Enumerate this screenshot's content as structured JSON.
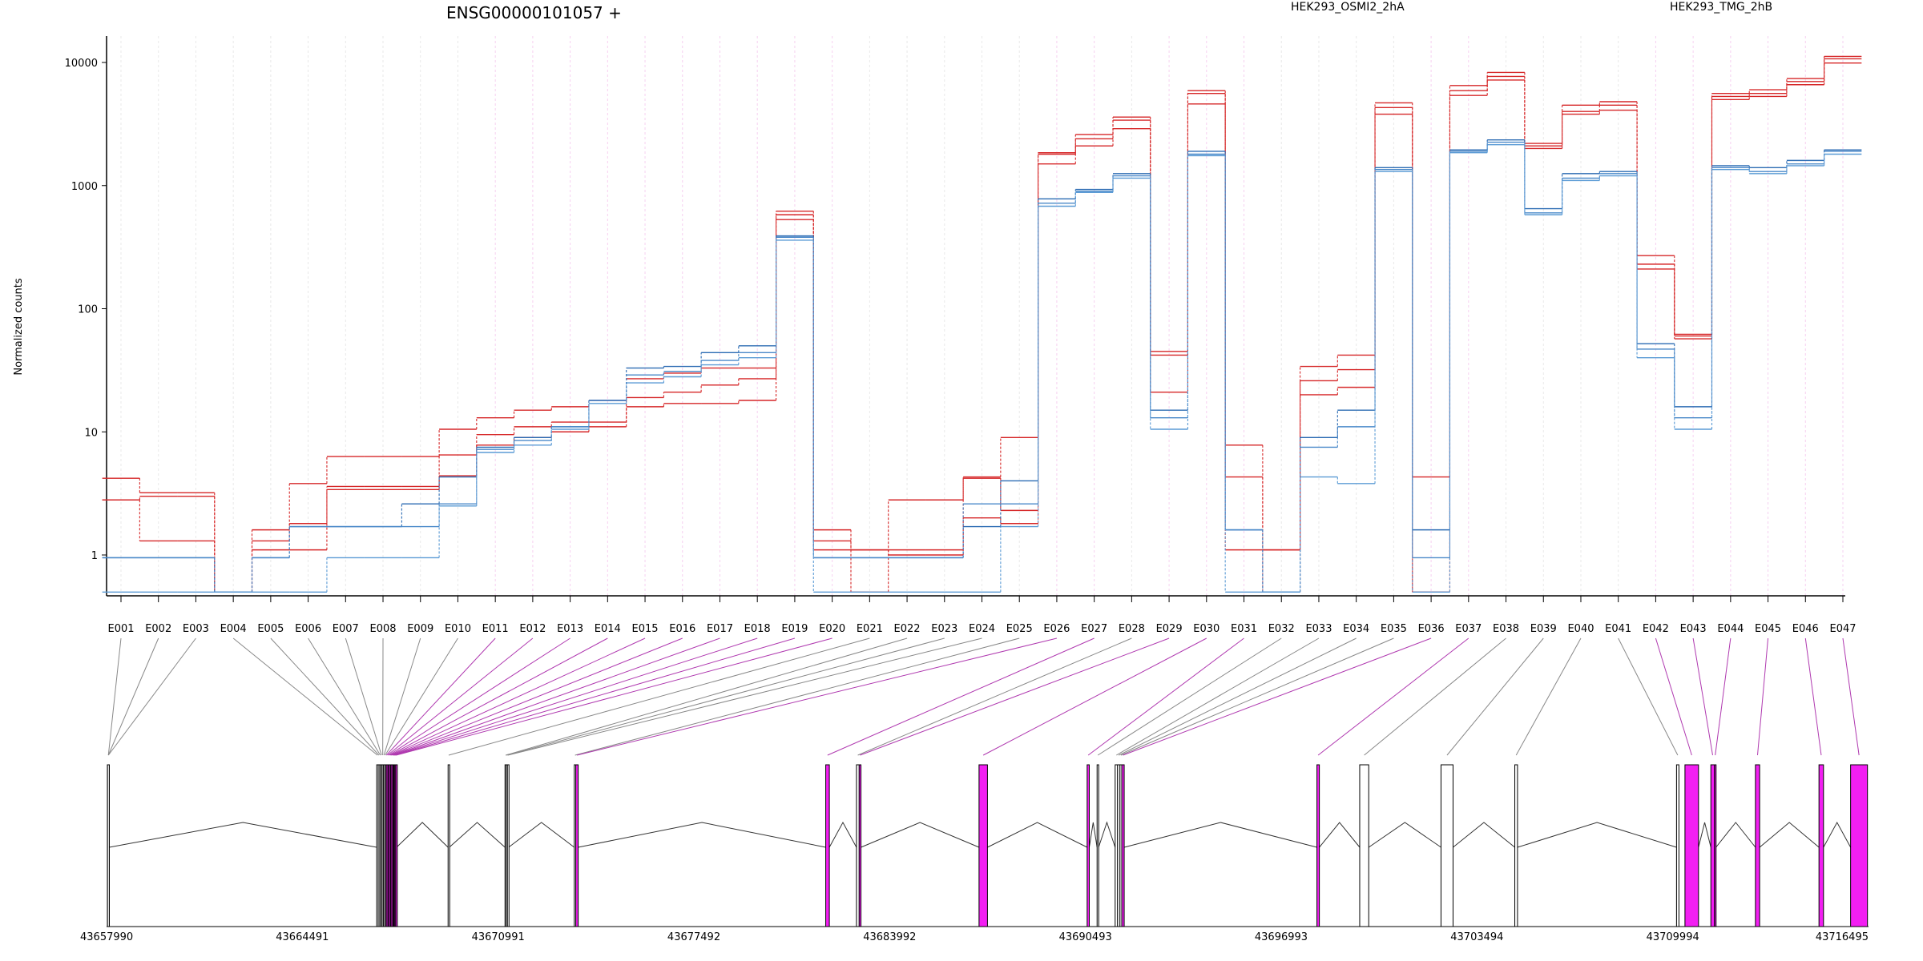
{
  "chart_data": {
    "type": "line",
    "title": "ENSG00000101057 +",
    "xlabel": "",
    "ylabel": "Normalized counts",
    "y_scale": "log",
    "ylim": [
      0.45,
      14000
    ],
    "y_ticks": [
      1,
      10,
      100,
      1000,
      10000
    ],
    "y_tick_labels": [
      "1",
      "10",
      "100",
      "1000",
      "10000"
    ],
    "grid": "vertical dotted lines at each exon, magenta for differential exons",
    "legend_placement": "top",
    "categories": [
      "E001",
      "E002",
      "E003",
      "E004",
      "E005",
      "E006",
      "E007",
      "E008",
      "E009",
      "E010",
      "E011",
      "E012",
      "E013",
      "E014",
      "E015",
      "E016",
      "E017",
      "E018",
      "E019",
      "E020",
      "E021",
      "E022",
      "E023",
      "E024",
      "E025",
      "E026",
      "E027",
      "E028",
      "E029",
      "E030",
      "E031",
      "E032",
      "E033",
      "E034",
      "E035",
      "E036",
      "E037",
      "E038",
      "E039",
      "E040",
      "E041",
      "E042",
      "E043",
      "E044",
      "E045",
      "E046",
      "E047"
    ],
    "series": [
      {
        "name": "HEK293_OSMI2_2hA",
        "color": "#d62728",
        "values": [
          4.2,
          3.2,
          3.2,
          0.5,
          1.6,
          3.8,
          6.3,
          6.3,
          6.3,
          10.5,
          13,
          15,
          16,
          18,
          27,
          30,
          33,
          33,
          620,
          1.6,
          0.5,
          2.8,
          2.8,
          4.3,
          9,
          1850,
          2600,
          3600,
          45,
          5900,
          7.8,
          1.1,
          34,
          42,
          4700,
          4.3,
          6500,
          8300,
          2200,
          4500,
          4800,
          270,
          62,
          5600,
          6000,
          7400,
          11200
        ]
      },
      {
        "name": "HEK293_OSMI2_2hA",
        "color": "#d62728",
        "values": [
          2.8,
          1.3,
          1.3,
          0.5,
          1.3,
          1.8,
          3.6,
          3.6,
          3.6,
          6.5,
          9.5,
          11,
          12,
          12,
          19,
          21,
          24,
          27,
          580,
          1.3,
          1.1,
          1.1,
          1.1,
          4.2,
          2.3,
          1800,
          2400,
          3400,
          42,
          5600,
          4.3,
          0.5,
          26,
          32,
          4300,
          0.5,
          5900,
          7700,
          2100,
          4000,
          4500,
          230,
          60,
          5300,
          5600,
          7000,
          10700
        ]
      },
      {
        "name": "HEK293_OSMI2_2hA",
        "color": "#d62728",
        "values": [
          2.8,
          3.0,
          3.0,
          0.5,
          1.1,
          1.1,
          3.4,
          3.4,
          3.4,
          4.4,
          7.8,
          9,
          10,
          11,
          16,
          17,
          17,
          18,
          530,
          1.1,
          1.1,
          1.0,
          1.0,
          2.0,
          1.8,
          1500,
          2100,
          2900,
          21,
          4600,
          1.1,
          1.1,
          20,
          23,
          3800,
          0.5,
          5400,
          7200,
          2000,
          3800,
          4100,
          210,
          57,
          5000,
          5300,
          6600,
          9900
        ]
      },
      {
        "name": "HEK293_TMG_2hB",
        "color": "#2b6bb3",
        "values": [
          0.95,
          0.95,
          0.95,
          0.5,
          0.95,
          1.7,
          1.7,
          1.7,
          2.6,
          4.3,
          7.5,
          9,
          11,
          18,
          33,
          34,
          44,
          50,
          390,
          0.95,
          0.95,
          0.95,
          0.95,
          1.7,
          4.0,
          780,
          930,
          1250,
          15,
          1900,
          1.6,
          0.5,
          9,
          15,
          1400,
          1.6,
          1950,
          2350,
          650,
          1250,
          1300,
          52,
          16,
          1450,
          1400,
          1600,
          1950
        ]
      },
      {
        "name": "HEK293_TMG_2hB",
        "color": "#4a89c9",
        "values": [
          0.95,
          0.95,
          0.95,
          0.5,
          0.95,
          1.7,
          1.7,
          1.7,
          1.7,
          2.6,
          7.2,
          8.5,
          11,
          18,
          29,
          31,
          38,
          44,
          380,
          0.95,
          0.95,
          0.95,
          0.95,
          2.6,
          2.6,
          720,
          900,
          1200,
          13,
          1800,
          1.6,
          0.5,
          7.5,
          11,
          1350,
          0.95,
          1900,
          2250,
          600,
          1150,
          1250,
          47,
          13,
          1400,
          1300,
          1500,
          1900
        ]
      },
      {
        "name": "HEK293_TMG_2hB",
        "color": "#5b9bd5",
        "values": [
          0.5,
          0.5,
          0.5,
          0.5,
          0.5,
          0.5,
          0.95,
          0.95,
          0.95,
          2.5,
          6.8,
          7.8,
          10.5,
          17,
          25,
          28,
          35,
          40,
          360,
          0.5,
          0.5,
          0.5,
          0.5,
          0.5,
          1.7,
          680,
          880,
          1150,
          10.5,
          1750,
          0.5,
          0.5,
          4.3,
          3.8,
          1300,
          0.5,
          1850,
          2150,
          580,
          1100,
          1200,
          40,
          10.5,
          1350,
          1250,
          1450,
          1800
        ]
      }
    ],
    "legend": [
      {
        "label": "HEK293_OSMI2_2hA",
        "color": "#d62728"
      },
      {
        "label": "HEK293_TMG_2hB",
        "color": "#4a89c9"
      }
    ],
    "differential_exons": [
      "E011",
      "E012",
      "E013",
      "E014",
      "E015",
      "E016",
      "E017",
      "E018",
      "E019",
      "E020",
      "E026",
      "E027",
      "E029",
      "E030",
      "E031",
      "E036",
      "E037",
      "E042",
      "E043",
      "E044",
      "E045",
      "E046",
      "E047"
    ],
    "gene_model": {
      "coordinate_labels": [
        "43657990",
        "43664491",
        "43670991",
        "43677492",
        "43683992",
        "43690493",
        "43696993",
        "43703494",
        "43709994",
        "43716495"
      ],
      "coord_range": [
        43657990,
        43716495
      ],
      "exons": [
        {
          "id": "E001",
          "start": 43658020,
          "end": 43658080,
          "differential": false
        },
        {
          "id": "E002",
          "start": 43658020,
          "end": 43658080,
          "differential": false
        },
        {
          "id": "E003",
          "start": 43658020,
          "end": 43658080,
          "differential": false
        },
        {
          "id": "E004",
          "start": 43666960,
          "end": 43667010,
          "differential": false
        },
        {
          "id": "E005",
          "start": 43667010,
          "end": 43667060,
          "differential": false
        },
        {
          "id": "E006",
          "start": 43667060,
          "end": 43667100,
          "differential": false
        },
        {
          "id": "E007",
          "start": 43667100,
          "end": 43667140,
          "differential": false
        },
        {
          "id": "E008",
          "start": 43667140,
          "end": 43667180,
          "differential": false
        },
        {
          "id": "E009",
          "start": 43667180,
          "end": 43667220,
          "differential": false
        },
        {
          "id": "E010",
          "start": 43667220,
          "end": 43667260,
          "differential": false
        },
        {
          "id": "E011",
          "start": 43667260,
          "end": 43667300,
          "differential": true
        },
        {
          "id": "E012",
          "start": 43667300,
          "end": 43667340,
          "differential": true
        },
        {
          "id": "E013",
          "start": 43667340,
          "end": 43667380,
          "differential": true
        },
        {
          "id": "E014",
          "start": 43667380,
          "end": 43667420,
          "differential": true
        },
        {
          "id": "E015",
          "start": 43667420,
          "end": 43667460,
          "differential": true
        },
        {
          "id": "E016",
          "start": 43667460,
          "end": 43667500,
          "differential": true
        },
        {
          "id": "E017",
          "start": 43667500,
          "end": 43667530,
          "differential": true
        },
        {
          "id": "E018",
          "start": 43667530,
          "end": 43667560,
          "differential": true
        },
        {
          "id": "E019",
          "start": 43667560,
          "end": 43667590,
          "differential": true
        },
        {
          "id": "E020",
          "start": 43667590,
          "end": 43667620,
          "differential": true
        },
        {
          "id": "E021",
          "start": 43669330,
          "end": 43669370,
          "differential": false
        },
        {
          "id": "E022",
          "start": 43671220,
          "end": 43671260,
          "differential": false
        },
        {
          "id": "E023",
          "start": 43671260,
          "end": 43671300,
          "differential": false
        },
        {
          "id": "E024",
          "start": 43671300,
          "end": 43671340,
          "differential": false
        },
        {
          "id": "E025",
          "start": 43673520,
          "end": 43673570,
          "differential": false
        },
        {
          "id": "E026",
          "start": 43673570,
          "end": 43673650,
          "differential": true
        },
        {
          "id": "E027",
          "start": 43681870,
          "end": 43681990,
          "differential": true
        },
        {
          "id": "E028",
          "start": 43682890,
          "end": 43682980,
          "differential": false
        },
        {
          "id": "E029",
          "start": 43682980,
          "end": 43683040,
          "differential": true
        },
        {
          "id": "E030",
          "start": 43686960,
          "end": 43687240,
          "differential": true
        },
        {
          "id": "E031",
          "start": 43690550,
          "end": 43690620,
          "differential": true
        },
        {
          "id": "E032",
          "start": 43690880,
          "end": 43690930,
          "differential": false
        },
        {
          "id": "E033",
          "start": 43691480,
          "end": 43691560,
          "differential": false
        },
        {
          "id": "E034",
          "start": 43691560,
          "end": 43691640,
          "differential": false
        },
        {
          "id": "E035",
          "start": 43691640,
          "end": 43691700,
          "differential": false
        },
        {
          "id": "E036",
          "start": 43691700,
          "end": 43691780,
          "differential": true
        },
        {
          "id": "E037",
          "start": 43698180,
          "end": 43698260,
          "differential": true
        },
        {
          "id": "E038",
          "start": 43699600,
          "end": 43699900,
          "differential": false
        },
        {
          "id": "E039",
          "start": 43702300,
          "end": 43702700,
          "differential": false
        },
        {
          "id": "E040",
          "start": 43704750,
          "end": 43704840,
          "differential": false
        },
        {
          "id": "E041",
          "start": 43710120,
          "end": 43710200,
          "differential": false
        },
        {
          "id": "E042",
          "start": 43710400,
          "end": 43710850,
          "differential": true
        },
        {
          "id": "E043",
          "start": 43711260,
          "end": 43711380,
          "differential": true
        },
        {
          "id": "E044",
          "start": 43711380,
          "end": 43711430,
          "differential": true
        },
        {
          "id": "E045",
          "start": 43712740,
          "end": 43712880,
          "differential": true
        },
        {
          "id": "E046",
          "start": 43714850,
          "end": 43715000,
          "differential": true
        },
        {
          "id": "E047",
          "start": 43715900,
          "end": 43716460,
          "differential": true
        }
      ]
    }
  },
  "colors": {
    "osmi": "#d62728",
    "tmg": "#4a89c9",
    "differential": "#f21ff2",
    "gridline": "#e9e9e9",
    "gridline_diff": "#f6d0f0"
  }
}
